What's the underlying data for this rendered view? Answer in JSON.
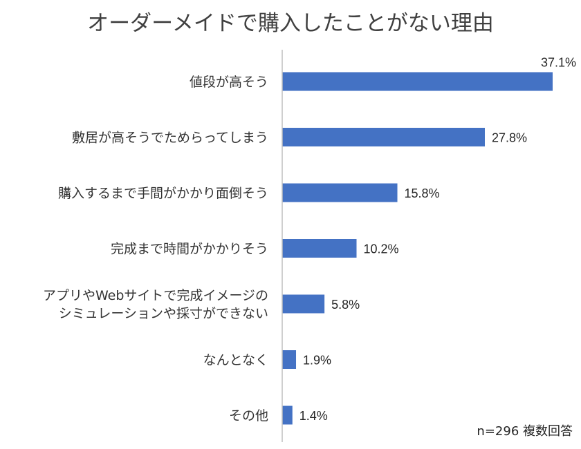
{
  "chart_data": {
    "type": "bar",
    "orientation": "horizontal",
    "title": "オーダーメイドで購入したことがない理由",
    "categories": [
      [
        "値段が高そう"
      ],
      [
        "敷居が高そうでためらってしまう"
      ],
      [
        "購入するまで手間がかかり面倒そう"
      ],
      [
        "完成まで時間がかかりそう"
      ],
      [
        "アプリやWebサイトで完成イメージの",
        "シミュレーションや採寸ができない"
      ],
      [
        "なんとなく"
      ],
      [
        "その他"
      ]
    ],
    "values": [
      37.1,
      27.8,
      15.8,
      10.2,
      5.8,
      1.9,
      1.4
    ],
    "value_labels": [
      "37.1%",
      "27.8%",
      "15.8%",
      "10.2%",
      "5.8%",
      "1.9%",
      "1.4%"
    ],
    "xlim": [
      0,
      37.1
    ],
    "bar_color": "#4472C4",
    "axis_color": "#BFBFBF",
    "grid": false,
    "note": "n=296 複数回答"
  }
}
